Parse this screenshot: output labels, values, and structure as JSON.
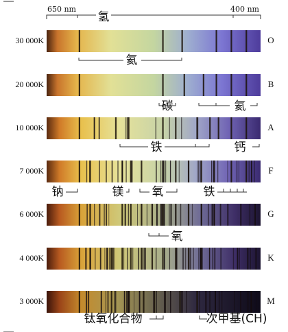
{
  "wavelength_labels": [
    "650 nm",
    "400 nm"
  ],
  "top_label": "氢",
  "spectra": [
    {
      "temperature": "30 000K",
      "class": "O"
    },
    {
      "temperature": "20 000K",
      "class": "B"
    },
    {
      "temperature": "10 000K",
      "class": "A"
    },
    {
      "temperature": "7 000K",
      "class": "F"
    },
    {
      "temperature": "6 000K",
      "class": "G"
    },
    {
      "temperature": "4 000K",
      "class": "K"
    },
    {
      "temperature": "3 000K",
      "class": "M"
    }
  ],
  "annotations": [
    {
      "text": "氦"
    },
    {
      "text": "碳"
    },
    {
      "text": "氦"
    },
    {
      "text": "铁"
    },
    {
      "text": "钙"
    },
    {
      "text": "钠"
    },
    {
      "text": "镁"
    },
    {
      "text": "氧"
    },
    {
      "text": "铁"
    },
    {
      "text": "氧"
    },
    {
      "text": "钛氧化合物"
    },
    {
      "text": "次甲基(CH)"
    }
  ]
}
